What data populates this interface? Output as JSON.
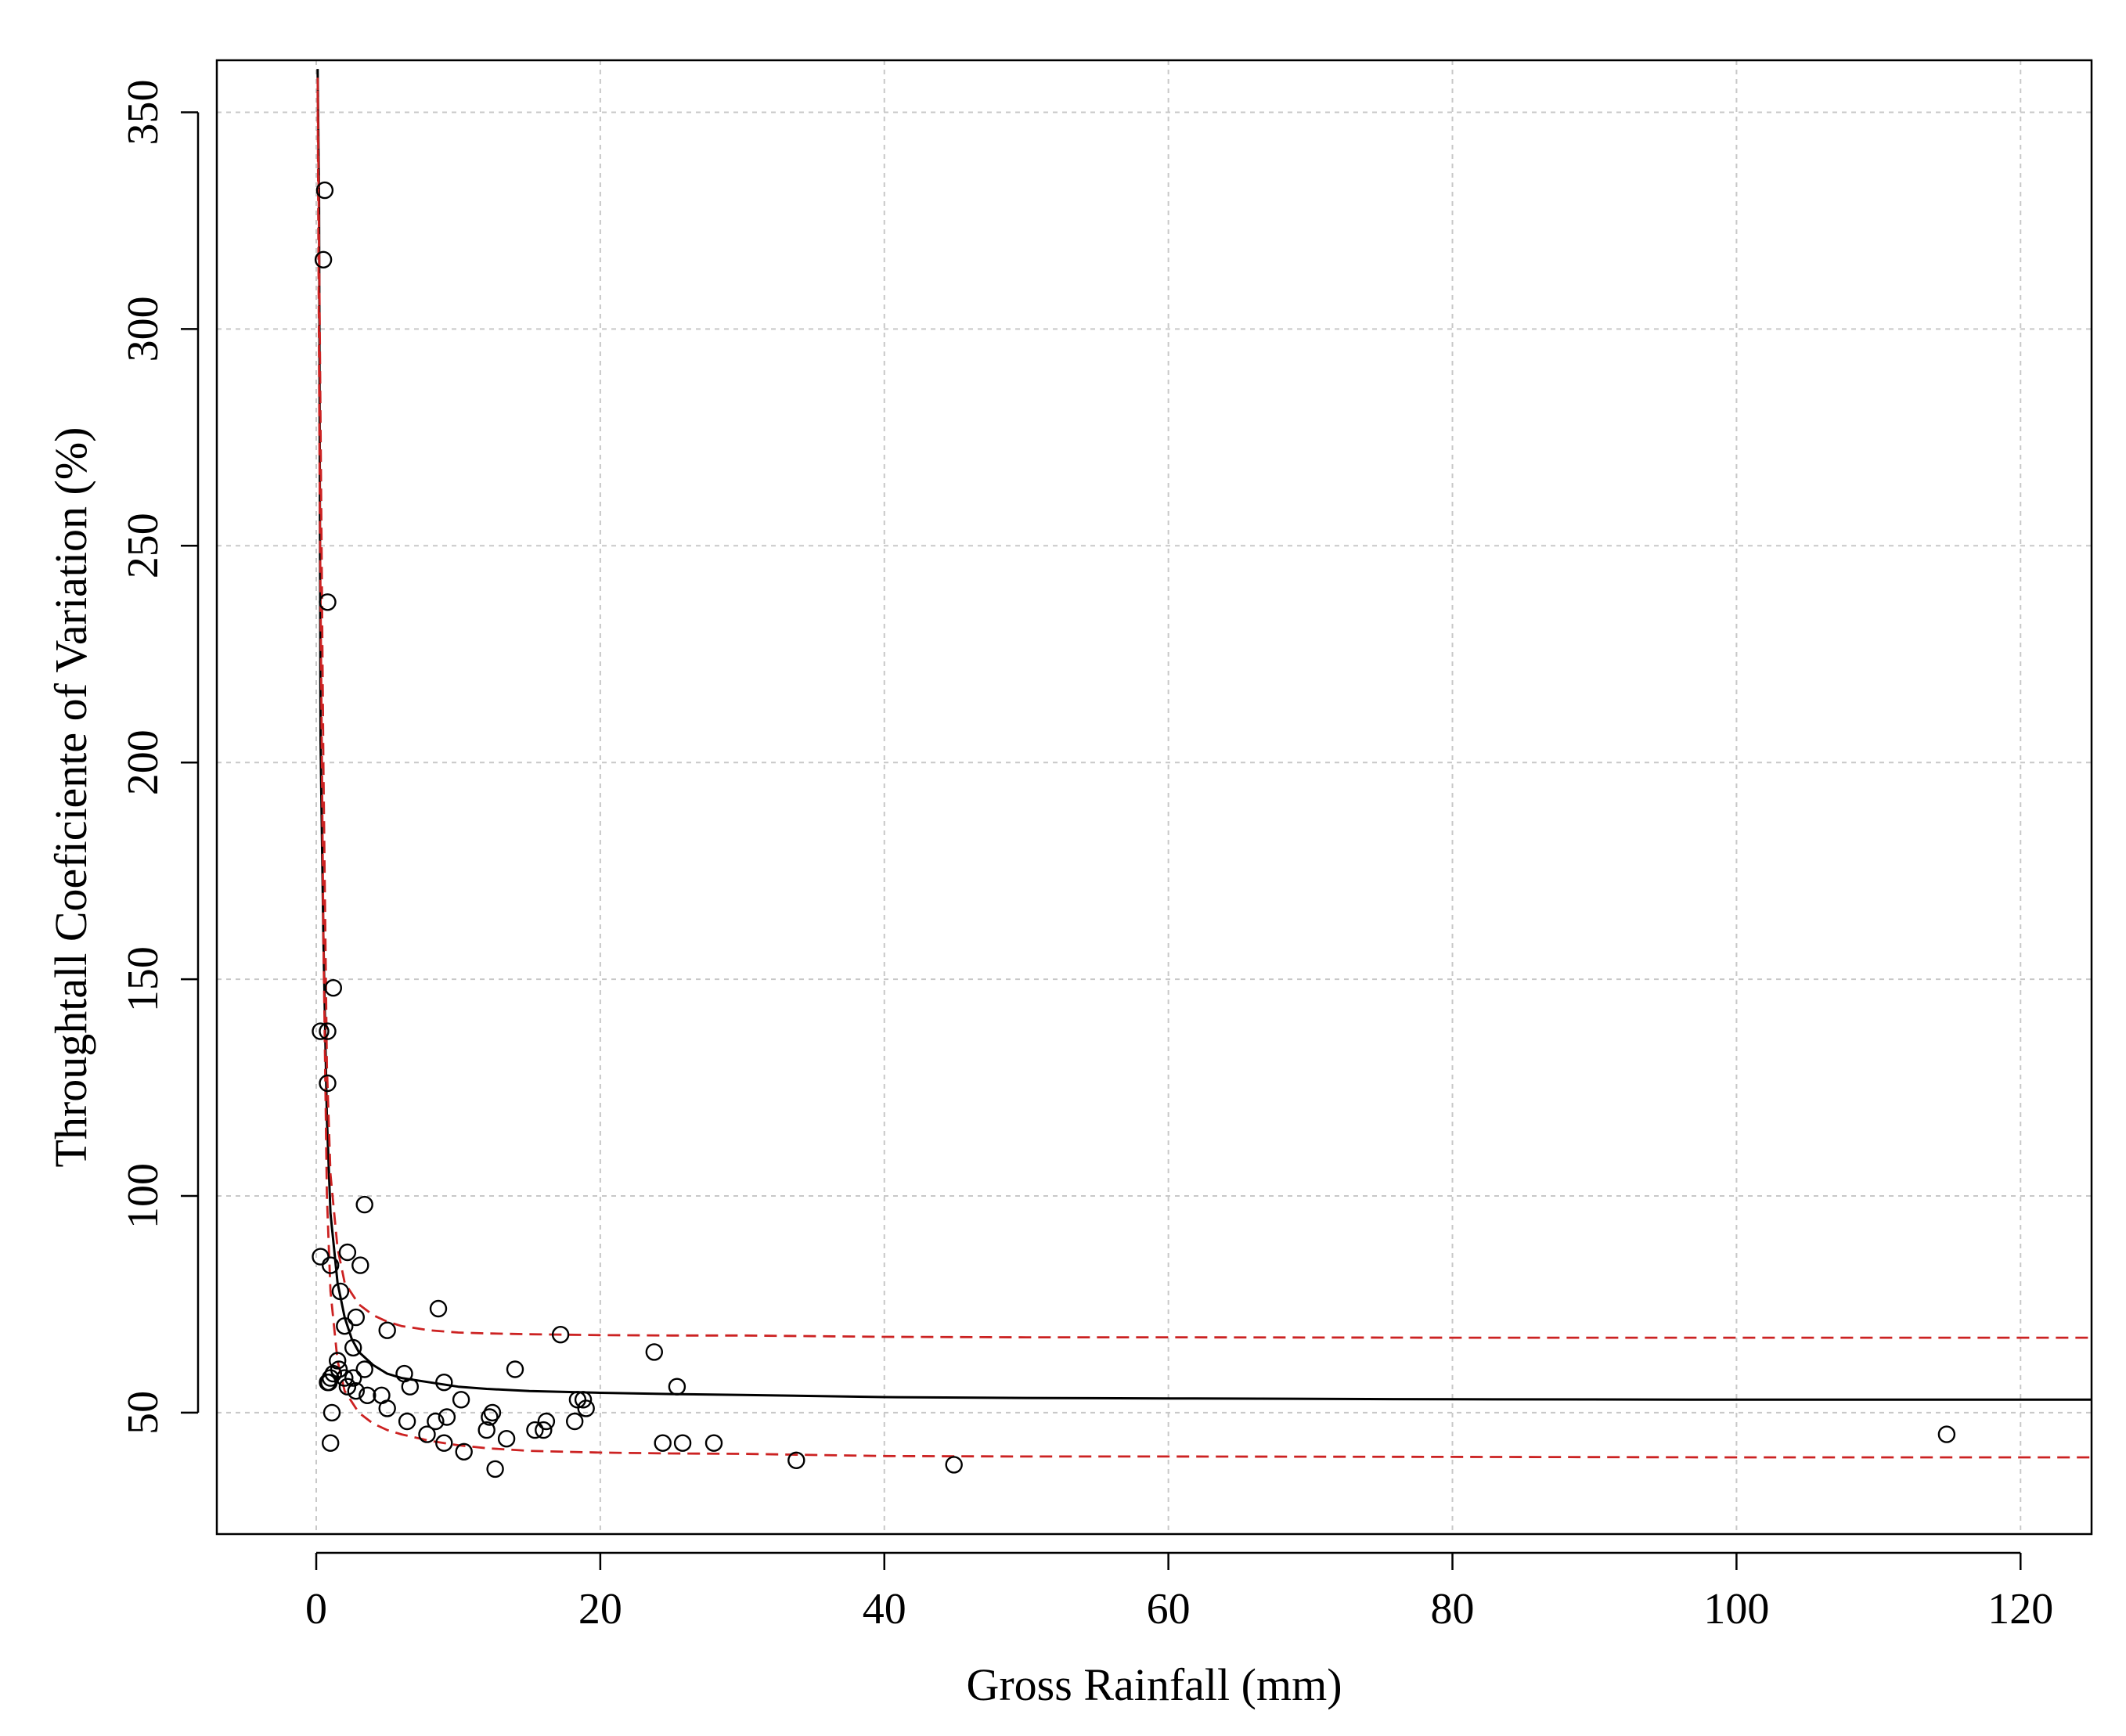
{
  "chart_data": {
    "type": "scatter",
    "title": "",
    "xlabel": "Gross Rainfall (mm)",
    "ylabel": "Throughtall Coeficiente of Variation (%)",
    "xlim": [
      -7,
      125
    ],
    "ylim": [
      22,
      362
    ],
    "x_ticks": [
      0,
      20,
      40,
      60,
      80,
      100,
      120
    ],
    "y_ticks": [
      50,
      100,
      150,
      200,
      250,
      300,
      350
    ],
    "x_tick_labels": [
      "0",
      "20",
      "40",
      "60",
      "80",
      "100",
      "120"
    ],
    "y_tick_labels": [
      "50",
      "100",
      "150",
      "200",
      "250",
      "300",
      "350"
    ],
    "grid": true,
    "legend": "none",
    "colors": {
      "points": "#000000",
      "fit": "#000000",
      "interval": "#cc2222",
      "grid": "#c8c8c8"
    },
    "series": [
      {
        "kind": "points",
        "x": [
          0.6,
          0.5,
          0.8,
          1.2,
          0.3,
          0.8,
          0.8,
          0.3,
          1.0,
          1.7,
          2.2,
          3.1,
          3.4,
          1.6,
          2.8,
          2.0,
          5.0,
          2.6,
          0.8,
          1.0,
          1.2,
          1.5,
          2.0,
          2.6,
          3.4,
          2.2,
          2.8,
          3.6,
          4.6,
          5.0,
          6.2,
          6.6,
          6.4,
          7.8,
          8.4,
          8.6,
          9.0,
          9.2,
          9.0,
          10.2,
          10.4,
          12.0,
          12.2,
          12.4,
          12.6,
          13.4,
          14.0,
          15.4,
          16.0,
          16.2,
          17.2,
          18.2,
          18.4,
          18.8,
          19.0,
          23.8,
          24.4,
          25.4,
          25.8,
          28.0,
          33.8,
          44.9,
          114.8,
          1.1,
          0.9,
          1.0
        ],
        "y": [
          332,
          316,
          237,
          148,
          138,
          138,
          126,
          86,
          84,
          78,
          87,
          84,
          98,
          60,
          72,
          70,
          69,
          65,
          57,
          58,
          59,
          62,
          58,
          58,
          60,
          56,
          55,
          54,
          54,
          51,
          59,
          56,
          48,
          45,
          48,
          74,
          57,
          49,
          43,
          53,
          41,
          46,
          49,
          50,
          37,
          44,
          60,
          46,
          46,
          48,
          68,
          48,
          53,
          53,
          51,
          64,
          43,
          56,
          43,
          43,
          39,
          38,
          45,
          50,
          57,
          43
        ]
      },
      {
        "kind": "fit",
        "x": [
          0.1,
          0.2,
          0.3,
          0.5,
          0.75,
          1,
          1.5,
          2,
          2.5,
          3,
          4,
          5,
          6,
          8,
          10,
          12,
          15,
          20,
          25,
          30,
          40,
          50,
          60,
          80,
          100,
          125
        ],
        "y": [
          360,
          330,
          205,
          160,
          118,
          96,
          80,
          72,
          67,
          64,
          61,
          59,
          58,
          57,
          56,
          55.5,
          55,
          54.6,
          54.3,
          54.1,
          53.6,
          53.4,
          53.3,
          53.1,
          53.0,
          53.0
        ]
      },
      {
        "kind": "upper",
        "x": [
          0.1,
          0.25,
          0.5,
          0.75,
          1,
          1.5,
          2,
          3,
          4,
          5,
          6,
          8,
          10,
          12,
          15,
          20,
          25,
          30,
          40,
          50,
          60,
          80,
          100,
          125
        ],
        "y": [
          358,
          300,
          200,
          130,
          105,
          88,
          80,
          75,
          72.5,
          71,
          70,
          69,
          68.5,
          68.3,
          68.1,
          67.9,
          67.8,
          67.8,
          67.5,
          67.4,
          67.4,
          67.3,
          67.3,
          67.3
        ]
      },
      {
        "kind": "lower",
        "x": [
          0.1,
          0.25,
          0.5,
          0.75,
          1,
          1.5,
          2,
          3,
          4,
          5,
          6,
          8,
          10,
          12,
          15,
          20,
          25,
          30,
          40,
          50,
          60,
          80,
          100,
          125
        ],
        "y": [
          355,
          260,
          160,
          100,
          78,
          62,
          55,
          50,
          47.5,
          46,
          45,
          43.5,
          42.5,
          41.8,
          41.2,
          40.8,
          40.6,
          40.5,
          40.0,
          39.9,
          39.9,
          39.8,
          39.7,
          39.7
        ]
      }
    ]
  }
}
